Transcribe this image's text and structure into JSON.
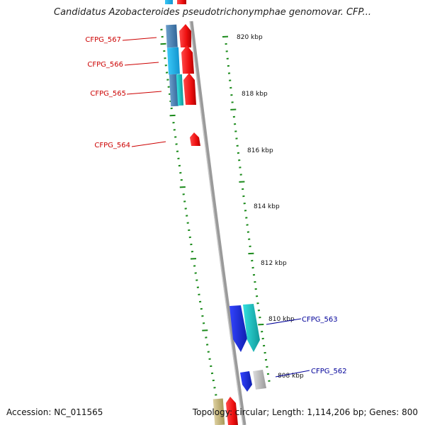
{
  "title": "Candidatus Azobacteroides pseudotrichonymphae genomovar. CFP...",
  "accession_label": "Accession: NC_011565",
  "topology_label": "Topology: circular; Length: 1,114,206 bp; Genes: 800",
  "scale": {
    "unit": "kbp",
    "labels": [
      "820 kbp",
      "818 kbp",
      "816 kbp",
      "814 kbp",
      "812 kbp",
      "810 kbp",
      "808 kbp"
    ]
  },
  "genes": [
    {
      "label": "CFPG_567",
      "color": "#cc0000"
    },
    {
      "label": "CFPG_566",
      "color": "#cc0000"
    },
    {
      "label": "CFPG_565",
      "color": "#cc0000"
    },
    {
      "label": "CFPG_564",
      "color": "#cc0000"
    },
    {
      "label": "CFPG_563",
      "color": "#000099"
    },
    {
      "label": "CFPG_562",
      "color": "#000099"
    }
  ],
  "colors": {
    "backbone": "#8a8a8a",
    "ticks": "#1a8a1a",
    "forward_gene": "#ee1111",
    "reverse_gene": "#1f2fe0",
    "cyan_feature": "#22cccc",
    "light_blue_feature": "#22b5ee",
    "steel_feature": "#4f86b9",
    "gray_feature": "#b8b8b8",
    "tan_feature": "#c8b878"
  }
}
